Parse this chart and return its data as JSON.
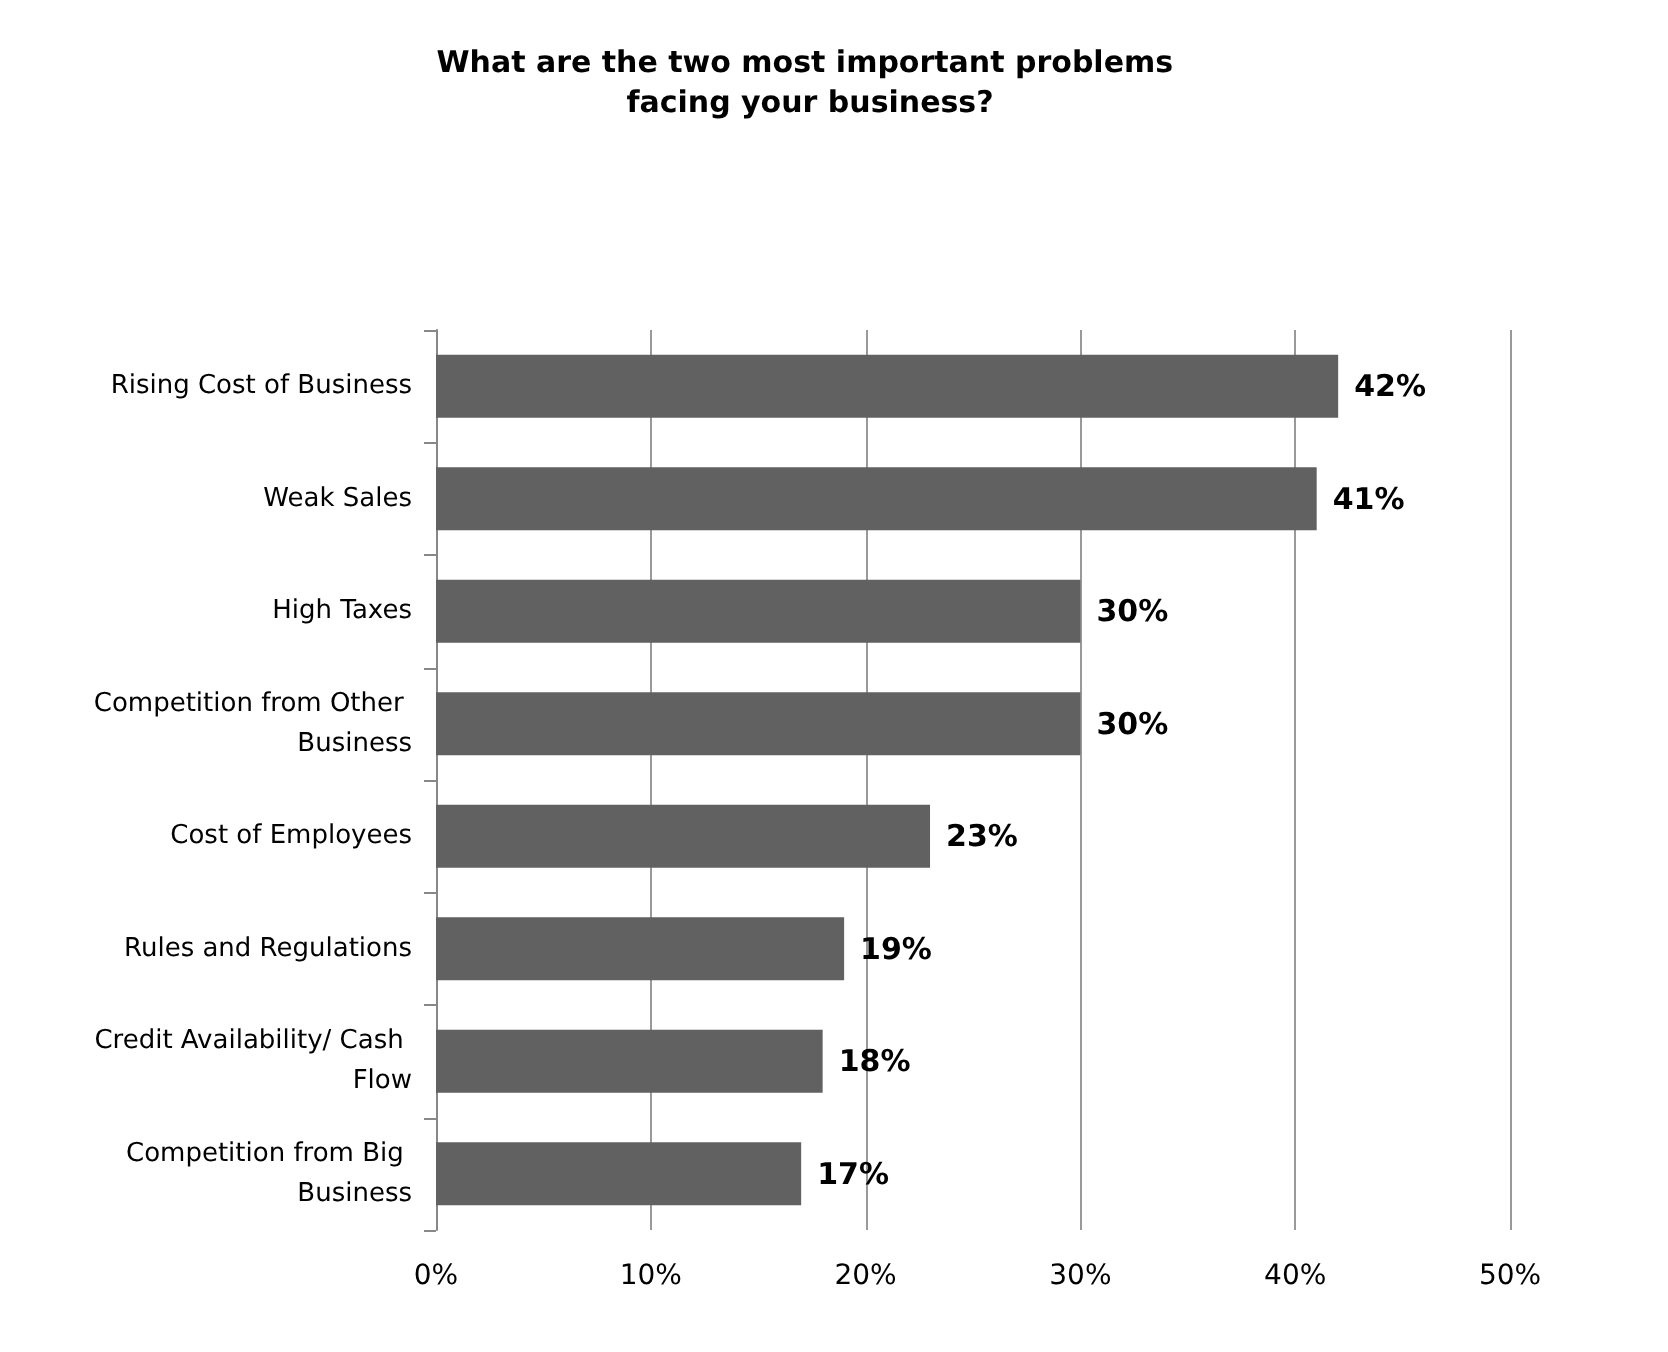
{
  "chart_data": {
    "type": "bar",
    "orientation": "horizontal",
    "title": "What are the two most important problems facing your business?",
    "categories": [
      "Rising Cost of Business",
      "Weak Sales",
      "High Taxes",
      "Competition from Other Business",
      "Cost of Employees",
      "Rules and Regulations",
      "Credit Availability/ Cash Flow",
      "Competition from Big Business"
    ],
    "values": [
      42,
      41,
      30,
      30,
      23,
      19,
      18,
      17
    ],
    "value_labels": [
      "42%",
      "41%",
      "30%",
      "30%",
      "23%",
      "19%",
      "18%",
      "17%"
    ],
    "color": "#616161",
    "xlim": [
      0,
      50
    ],
    "xticks": [
      {
        "value": 0,
        "label": "0%"
      },
      {
        "value": 10,
        "label": "10%"
      },
      {
        "value": 20,
        "label": "20%"
      },
      {
        "value": 30,
        "label": "30%"
      },
      {
        "value": 40,
        "label": "40%"
      },
      {
        "value": 50,
        "label": "50%"
      }
    ],
    "grid": "x"
  }
}
